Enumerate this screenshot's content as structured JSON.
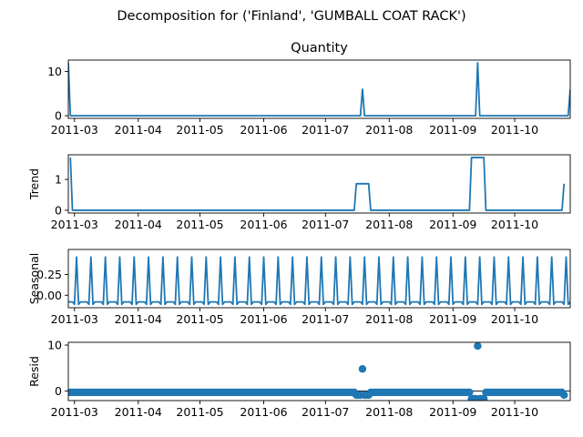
{
  "figure": {
    "suptitle": "Decomposition for ('Finland', 'GUMBALL COAT RACK')",
    "line_color": "#1f77b4"
  },
  "chart_data": [
    {
      "type": "line",
      "title": "Quantity",
      "ylabel": "",
      "x_range": [
        "2011-02-26",
        "2011-10-28"
      ],
      "xtick_labels": [
        "2011-03",
        "2011-04",
        "2011-05",
        "2011-06",
        "2011-07",
        "2011-08",
        "2011-09",
        "2011-10"
      ],
      "xtick_dates": [
        "2011-03-01",
        "2011-04-01",
        "2011-05-01",
        "2011-06-01",
        "2011-07-01",
        "2011-08-01",
        "2011-09-01",
        "2011-10-01"
      ],
      "ylim": [
        -0.6,
        12.6
      ],
      "yticks": [
        0,
        10
      ],
      "ytick_labels": [
        "0",
        "10"
      ],
      "points": [
        [
          "2011-02-26",
          12
        ],
        [
          "2011-02-27",
          0
        ],
        [
          "2011-07-18",
          0
        ],
        [
          "2011-07-19",
          6
        ],
        [
          "2011-07-20",
          0
        ],
        [
          "2011-09-12",
          0
        ],
        [
          "2011-09-13",
          12
        ],
        [
          "2011-09-14",
          0
        ],
        [
          "2011-10-27",
          0
        ],
        [
          "2011-10-28",
          6
        ]
      ]
    },
    {
      "type": "line",
      "title": "",
      "ylabel": "Trend",
      "x_range": [
        "2011-02-26",
        "2011-10-28"
      ],
      "xtick_labels": [
        "2011-03",
        "2011-04",
        "2011-05",
        "2011-06",
        "2011-07",
        "2011-08",
        "2011-09",
        "2011-10"
      ],
      "xtick_dates": [
        "2011-03-01",
        "2011-04-01",
        "2011-05-01",
        "2011-06-01",
        "2011-07-01",
        "2011-08-01",
        "2011-09-01",
        "2011-10-01"
      ],
      "ylim": [
        -0.09,
        1.8
      ],
      "yticks": [
        0,
        1
      ],
      "ytick_labels": [
        "0",
        "1"
      ],
      "points": [
        [
          "2011-02-27",
          1.71
        ],
        [
          "2011-02-28",
          0
        ],
        [
          "2011-07-15",
          0
        ],
        [
          "2011-07-16",
          0.86
        ],
        [
          "2011-07-22",
          0.86
        ],
        [
          "2011-07-23",
          0
        ],
        [
          "2011-09-09",
          0
        ],
        [
          "2011-09-10",
          1.71
        ],
        [
          "2011-09-16",
          1.71
        ],
        [
          "2011-09-17",
          0
        ],
        [
          "2011-10-24",
          0
        ],
        [
          "2011-10-25",
          0.86
        ]
      ]
    },
    {
      "type": "line",
      "title": "",
      "ylabel": "Seasonal",
      "x_range": [
        "2011-02-26",
        "2011-10-28"
      ],
      "xtick_labels": [
        "2011-03",
        "2011-04",
        "2011-05",
        "2011-06",
        "2011-07",
        "2011-08",
        "2011-09",
        "2011-10"
      ],
      "xtick_dates": [
        "2011-03-01",
        "2011-04-01",
        "2011-05-01",
        "2011-06-01",
        "2011-07-01",
        "2011-08-01",
        "2011-09-01",
        "2011-10-01"
      ],
      "ylim": [
        -0.15,
        0.55
      ],
      "yticks": [
        0.0,
        0.25
      ],
      "ytick_labels": [
        "0.00",
        "0.25"
      ],
      "period_days": 7,
      "cycle_start": "2011-02-26",
      "pattern": [
        -0.08,
        -0.08,
        -0.08,
        -0.11,
        0.46,
        -0.11,
        -0.08
      ]
    },
    {
      "type": "scatter",
      "title": "",
      "ylabel": "Resid",
      "x_range": [
        "2011-02-26",
        "2011-10-28"
      ],
      "xtick_labels": [
        "2011-03",
        "2011-04",
        "2011-05",
        "2011-06",
        "2011-07",
        "2011-08",
        "2011-09",
        "2011-10"
      ],
      "xtick_dates": [
        "2011-03-01",
        "2011-04-01",
        "2011-05-01",
        "2011-06-01",
        "2011-07-01",
        "2011-08-01",
        "2011-09-01",
        "2011-10-01"
      ],
      "ylim": [
        -2.1,
        10.6
      ],
      "yticks": [
        0,
        10
      ],
      "ytick_labels": [
        "0",
        "10"
      ],
      "baseline": 0,
      "resid_range": [
        "2011-02-27",
        "2011-10-25"
      ],
      "resid_default": -0.3,
      "outliers": [
        [
          "2011-07-16",
          -0.9
        ],
        [
          "2011-07-17",
          -0.9
        ],
        [
          "2011-07-18",
          -0.9
        ],
        [
          "2011-07-19",
          4.8
        ],
        [
          "2011-07-20",
          -0.9
        ],
        [
          "2011-07-21",
          -0.9
        ],
        [
          "2011-07-22",
          -0.9
        ],
        [
          "2011-09-10",
          -1.7
        ],
        [
          "2011-09-11",
          -1.7
        ],
        [
          "2011-09-12",
          -1.7
        ],
        [
          "2011-09-13",
          9.8
        ],
        [
          "2011-09-14",
          -1.7
        ],
        [
          "2011-09-15",
          -1.7
        ],
        [
          "2011-09-16",
          -1.7
        ],
        [
          "2011-10-25",
          -0.9
        ]
      ]
    }
  ]
}
